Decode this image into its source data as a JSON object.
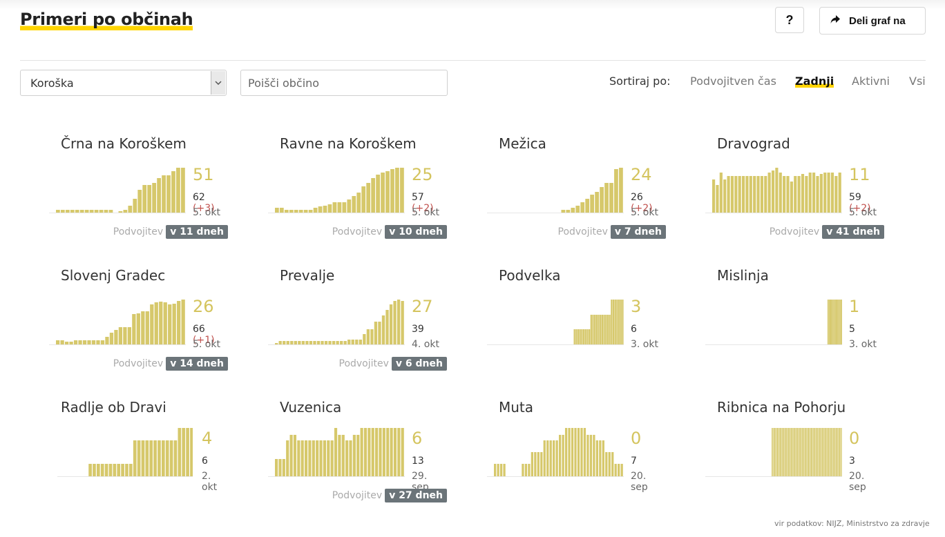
{
  "header": {
    "title": "Primeri po občinah",
    "help_label": "?",
    "share_label": "Deli graf na"
  },
  "filters": {
    "region_value": "Koroška",
    "search_placeholder": "Poišči občino",
    "search_value": "",
    "sort_label": "Sortiraj po:",
    "sort_options": [
      {
        "label": "Podvojitven čas",
        "active": false
      },
      {
        "label": "Zadnji",
        "active": true
      },
      {
        "label": "Aktivni",
        "active": false
      },
      {
        "label": "Vsi",
        "active": false
      }
    ]
  },
  "colors": {
    "bar": "#d6c86b",
    "value": "#d4c45e",
    "delta": "#c0504d",
    "badge": "#6b7479",
    "accent_underline": "#ffd500"
  },
  "municipalities": [
    {
      "name": "Črna na Koroškem",
      "active": "51",
      "total": "62",
      "delta": "(+3)",
      "date": "5. okt",
      "dbl_label": "Podvojitev",
      "dbl_value": "v 11 dneh",
      "bars": [
        4,
        4,
        4,
        4,
        4,
        4,
        4,
        4,
        4,
        4,
        4,
        4,
        0,
        2,
        4,
        10,
        20,
        33,
        40,
        40,
        43,
        50,
        54,
        54,
        60,
        65,
        65
      ]
    },
    {
      "name": "Ravne na Koroškem",
      "active": "25",
      "total": "57",
      "delta": "(+2)",
      "date": "5. okt",
      "dbl_label": "Podvojitev",
      "dbl_value": "v 10 dneh",
      "bars": [
        7,
        7,
        4,
        4,
        4,
        4,
        4,
        4,
        7,
        9,
        10,
        12,
        15,
        15,
        15,
        19,
        24,
        29,
        38,
        43,
        50,
        55,
        58,
        60,
        63,
        65,
        65
      ]
    },
    {
      "name": "Mežica",
      "active": "24",
      "total": "26",
      "delta": "(+2)",
      "date": "5. okt",
      "dbl_label": "Podvojitev",
      "dbl_value": "v 7 dneh",
      "bars": [
        0,
        0,
        0,
        0,
        0,
        0,
        0,
        0,
        0,
        0,
        0,
        0,
        0,
        0,
        4,
        4,
        7,
        10,
        15,
        20,
        26,
        30,
        37,
        43,
        43,
        63,
        65
      ]
    },
    {
      "name": "Dravograd",
      "active": "11",
      "total": "59",
      "delta": "(+2)",
      "date": "5. okt",
      "dbl_label": "Podvojitev",
      "dbl_value": "v 41 dneh",
      "bars": [
        48,
        40,
        58,
        48,
        53,
        53,
        53,
        53,
        53,
        53,
        53,
        53,
        53,
        53,
        53,
        58,
        61,
        65,
        58,
        53,
        53,
        45,
        53,
        53,
        56,
        53,
        58,
        58,
        53,
        56,
        58,
        58,
        58,
        53,
        58
      ]
    },
    {
      "name": "Slovenj Gradec",
      "active": "26",
      "total": "66",
      "delta": "(+1)",
      "date": "5. okt",
      "dbl_label": "Podvojitev",
      "dbl_value": "v 14 dneh",
      "bars": [
        6,
        6,
        4,
        4,
        6,
        6,
        6,
        6,
        6,
        6,
        6,
        11,
        17,
        21,
        25,
        25,
        25,
        44,
        45,
        48,
        48,
        58,
        61,
        62,
        61,
        58,
        59,
        63,
        65
      ]
    },
    {
      "name": "Prevalje",
      "active": "27",
      "total": "39",
      "delta": "",
      "date": "4. okt",
      "dbl_label": "Podvojitev",
      "dbl_value": "v 6 dneh",
      "bars": [
        2,
        5,
        5,
        5,
        5,
        5,
        5,
        5,
        5,
        5,
        5,
        5,
        5,
        5,
        5,
        5,
        5,
        5,
        5,
        7,
        7,
        7,
        7,
        15,
        22,
        22,
        33,
        33,
        42,
        50,
        58,
        63,
        65,
        63
      ]
    },
    {
      "name": "Podvelka",
      "active": "3",
      "total": "6",
      "delta": "",
      "date": "3. okt",
      "dbl_label": "",
      "dbl_value": "",
      "bars": [
        0,
        0,
        0,
        0,
        0,
        0,
        0,
        0,
        0,
        0,
        0,
        0,
        0,
        0,
        0,
        0,
        0,
        0,
        0,
        0,
        0,
        0,
        0,
        0,
        0,
        0,
        0,
        0,
        0,
        0,
        0,
        0,
        0,
        0,
        0,
        0,
        0,
        0,
        0,
        0,
        0,
        0,
        0,
        22,
        22,
        22,
        22,
        22,
        22,
        22,
        22,
        22,
        43,
        43,
        43,
        43,
        43,
        43,
        43,
        43,
        43,
        43,
        43,
        65,
        65,
        65,
        65,
        65,
        65,
        65
      ]
    },
    {
      "name": "Mislinja",
      "active": "1",
      "total": "5",
      "delta": "",
      "date": "3. okt",
      "dbl_label": "",
      "dbl_value": "",
      "bars": [
        0,
        0,
        0,
        0,
        0,
        0,
        0,
        0,
        0,
        0,
        0,
        0,
        0,
        0,
        0,
        0,
        0,
        0,
        0,
        0,
        0,
        0,
        0,
        0,
        0,
        0,
        0,
        0,
        0,
        0,
        0,
        0,
        0,
        0,
        0,
        0,
        0,
        0,
        0,
        0,
        0,
        0,
        0,
        0,
        0,
        0,
        0,
        0,
        0,
        0,
        0,
        0,
        0,
        0,
        0,
        0,
        0,
        0,
        0,
        0,
        0,
        0,
        0,
        0,
        0,
        0,
        0,
        0,
        0,
        0,
        0,
        0,
        0,
        0,
        0,
        0,
        0,
        0,
        0,
        0,
        0,
        0,
        0,
        0,
        0,
        0,
        0,
        0,
        0,
        0,
        0,
        0,
        0,
        0,
        0,
        0,
        0,
        0,
        0,
        0,
        0,
        0,
        0,
        0,
        0,
        0,
        0,
        0,
        0,
        0,
        0,
        0,
        0,
        0,
        0,
        0,
        0,
        0,
        0,
        0,
        0,
        0,
        0,
        0,
        0,
        0,
        0,
        0,
        0,
        0,
        0,
        0,
        0,
        0,
        0,
        0,
        0,
        0,
        0,
        0,
        0,
        0,
        0,
        0,
        0,
        0,
        0,
        0,
        0,
        0,
        0,
        0,
        0,
        0,
        0,
        0,
        0,
        65,
        65,
        65,
        65,
        65,
        65,
        65,
        65,
        65,
        65,
        65,
        65,
        65,
        65,
        65,
        65,
        65,
        65,
        65,
        65
      ]
    },
    {
      "name": "Radlje ob Dravi",
      "active": "4",
      "total": "6",
      "delta": "",
      "date": "2. okt",
      "dbl_label": "",
      "dbl_value": "",
      "bars": [
        0,
        0,
        0,
        0,
        0,
        0,
        18,
        18,
        18,
        18,
        18,
        18,
        18,
        18,
        18,
        18,
        18,
        52,
        52,
        52,
        52,
        52,
        52,
        52,
        52,
        52,
        52,
        52,
        70,
        70,
        70,
        70
      ]
    },
    {
      "name": "Vuzenica",
      "active": "6",
      "total": "13",
      "delta": "",
      "date": "29. sep",
      "dbl_label": "Podvojitev",
      "dbl_value": "v 27 dneh",
      "bars": [
        25,
        25,
        25,
        52,
        60,
        60,
        52,
        52,
        52,
        52,
        52,
        52,
        52,
        52,
        52,
        52,
        70,
        60,
        60,
        52,
        52,
        60,
        60,
        70,
        70,
        70,
        70,
        70,
        70,
        70,
        70,
        70,
        70,
        70,
        70
      ]
    },
    {
      "name": "Muta",
      "active": "0",
      "total": "7",
      "delta": "",
      "date": "20. sep",
      "dbl_label": "",
      "dbl_value": "",
      "bars": [
        18,
        18,
        18,
        18,
        0,
        0,
        0,
        0,
        0,
        18,
        18,
        18,
        35,
        35,
        35,
        35,
        52,
        52,
        52,
        52,
        52,
        60,
        60,
        70,
        70,
        70,
        70,
        70,
        70,
        70,
        60,
        60,
        60,
        52,
        52,
        52,
        35,
        35,
        35,
        18,
        18,
        18
      ]
    },
    {
      "name": "Ribnica na Pohorju",
      "active": "0",
      "total": "3",
      "delta": "",
      "date": "20. sep",
      "dbl_label": "",
      "dbl_value": "",
      "bars": [
        0,
        0,
        0,
        0,
        0,
        0,
        0,
        0,
        0,
        0,
        0,
        0,
        0,
        0,
        0,
        0,
        0,
        0,
        0,
        0,
        0,
        0,
        0,
        0,
        0,
        0,
        0,
        0,
        0,
        0,
        0,
        0,
        0,
        0,
        0,
        0,
        0,
        0,
        0,
        0,
        0,
        0,
        0,
        0,
        0,
        0,
        0,
        0,
        0,
        0,
        0,
        0,
        0,
        0,
        0,
        0,
        0,
        0,
        0,
        0,
        0,
        0,
        0,
        0,
        0,
        70,
        70,
        70,
        70,
        70,
        70,
        70,
        70,
        70,
        70,
        70,
        70,
        70,
        70,
        70,
        70,
        70,
        70,
        70,
        70,
        70,
        70,
        70,
        70,
        70,
        70,
        70,
        70,
        70,
        70,
        70,
        70,
        70,
        70,
        70,
        70,
        70,
        70,
        70,
        70,
        70,
        70,
        70,
        70,
        70,
        70,
        70,
        70,
        70,
        70,
        70,
        70,
        70,
        70,
        70,
        70,
        70,
        70,
        70,
        70,
        70,
        70,
        70,
        70,
        70,
        70,
        70,
        70,
        70,
        70,
        70,
        70,
        70,
        70,
        70,
        70,
        70
      ]
    }
  ],
  "footer": {
    "source": "vir podatkov: NIJZ, Ministrstvo za zdravje"
  }
}
